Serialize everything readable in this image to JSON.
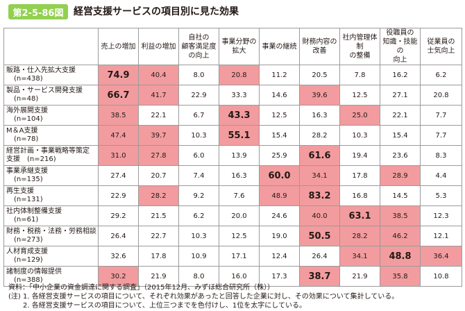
{
  "figure": {
    "badge": "第2-5-86図",
    "title": "経営支援サービスの項目別に見た効果"
  },
  "chart_data": {
    "type": "table",
    "columns": [
      "売上の増加",
      "利益の増加",
      "自社の\n顧客満足度\nの向上",
      "事業分野の\n拡大",
      "事業の継続",
      "財務内容の\n改善",
      "社内管理体制\nの整備",
      "役職員の\n知識・技能の\n向上",
      "従業員の\n士気向上"
    ],
    "rows": [
      {
        "label": "販路・仕入先拡大支援",
        "n": "(n=438)",
        "values": [
          74.9,
          40.4,
          8.0,
          20.8,
          11.2,
          20.5,
          7.8,
          16.2,
          6.2
        ],
        "top3": [
          0,
          1,
          3
        ],
        "first": 0
      },
      {
        "label": "製品・サービス開発支援",
        "n": "(n=48)",
        "values": [
          66.7,
          41.7,
          22.9,
          33.3,
          14.6,
          39.6,
          12.5,
          27.1,
          20.8
        ],
        "top3": [
          0,
          1,
          5
        ],
        "first": 0
      },
      {
        "label": "海外展開支援",
        "n": "(n=104)",
        "values": [
          38.5,
          22.1,
          6.7,
          43.3,
          12.5,
          16.3,
          25.0,
          22.1,
          7.7
        ],
        "top3": [
          0,
          3,
          6
        ],
        "first": 3
      },
      {
        "label": "M＆A支援",
        "n": "(n=78)",
        "values": [
          47.4,
          39.7,
          10.3,
          55.1,
          15.4,
          28.2,
          10.3,
          15.4,
          7.7
        ],
        "top3": [
          0,
          1,
          3
        ],
        "first": 3
      },
      {
        "label": "経営計画・事業戦略等策定",
        "label2": "支援",
        "n": "(n=216)",
        "values": [
          31.0,
          27.8,
          6.0,
          13.9,
          25.9,
          61.6,
          19.4,
          23.6,
          8.3
        ],
        "top3": [
          0,
          1,
          5
        ],
        "first": 5
      },
      {
        "label": "事業承継支援",
        "n": "(n=135)",
        "values": [
          27.4,
          20.7,
          7.4,
          16.3,
          60.0,
          34.1,
          17.8,
          28.9,
          4.4
        ],
        "top3": [
          4,
          5,
          7
        ],
        "first": 4
      },
      {
        "label": "再生支援",
        "n": "(n=131)",
        "values": [
          22.9,
          28.2,
          9.2,
          7.6,
          48.9,
          83.2,
          16.8,
          14.5,
          5.3
        ],
        "top3": [
          1,
          4,
          5
        ],
        "first": 5
      },
      {
        "label": "社内体制整備支援",
        "n": "(n=61)",
        "values": [
          29.2,
          21.5,
          6.2,
          20.0,
          24.6,
          40.0,
          63.1,
          38.5,
          12.3
        ],
        "top3": [
          5,
          6,
          7
        ],
        "first": 6
      },
      {
        "label": "財務・税務・法務・労務相談",
        "n": "(n=273)",
        "values": [
          26.4,
          22.7,
          10.3,
          12.5,
          19.0,
          50.5,
          28.2,
          46.2,
          12.1
        ],
        "top3": [
          5,
          6,
          7
        ],
        "first": 5
      },
      {
        "label": "人材育成支援",
        "n": "(n=129)",
        "values": [
          32.6,
          17.8,
          10.9,
          17.1,
          12.4,
          26.4,
          34.1,
          48.8,
          36.4
        ],
        "top3": [
          6,
          7,
          8
        ],
        "first": 7
      },
      {
        "label": "諸制度の情報提供",
        "n": "(n=388)",
        "values": [
          30.2,
          21.9,
          8.0,
          16.0,
          17.3,
          38.7,
          21.9,
          35.8,
          10.8
        ],
        "top3": [
          0,
          5,
          7
        ],
        "first": 5
      }
    ],
    "highlight_color": "#f29c9f"
  },
  "notes": {
    "source": "資料：「中小企業の資金調達に関する調査」（2015年12月、みずほ総合研究所（株））",
    "note1": "(注) 1. 各経営支援サービスの項目について、それぞれ効果があったと回答した企業に対し、その効果について集計している。",
    "note2": "2. 各経営支援サービスの項目について、上位三つまでを色付けし、1位を太字にしている。"
  }
}
